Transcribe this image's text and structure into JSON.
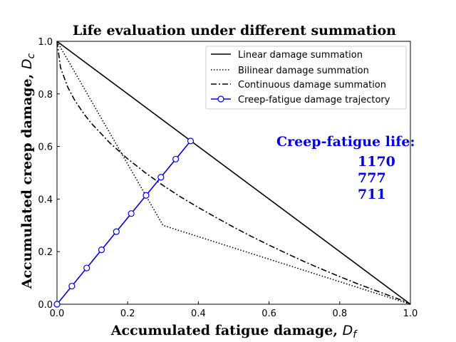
{
  "chart_data": {
    "type": "line",
    "title": "Life evaluation under different summation",
    "xlabel": "Accumulated fatigue damage, ",
    "xlabel_symbol": "D",
    "xlabel_sub": "f",
    "ylabel": "Accumulated creep damage, ",
    "ylabel_symbol": "D",
    "ylabel_sub": "c",
    "xlim": [
      0,
      1
    ],
    "ylim": [
      0,
      1
    ],
    "xticks": [
      "0.0",
      "0.2",
      "0.4",
      "0.6",
      "0.8",
      "1.0"
    ],
    "yticks": [
      "0.0",
      "0.2",
      "0.4",
      "0.6",
      "0.8",
      "1.0"
    ],
    "tick_values": [
      0,
      0.2,
      0.4,
      0.6,
      0.8,
      1.0
    ],
    "grid": false,
    "legend_position": "top-right",
    "series": [
      {
        "name": "Linear damage summation",
        "style": "solid",
        "color": "#000000",
        "x": [
          0,
          1
        ],
        "y": [
          1,
          0
        ]
      },
      {
        "name": "Bilinear damage summation",
        "style": "dotted",
        "color": "#000000",
        "x": [
          0,
          0.3,
          1
        ],
        "y": [
          1,
          0.3,
          0
        ]
      },
      {
        "name": "Continuous damage summation",
        "style": "dashdot",
        "color": "#000000",
        "x": [
          0,
          0.01,
          0.03,
          0.05,
          0.08,
          0.1,
          0.15,
          0.2,
          0.25,
          0.3,
          0.35,
          0.4,
          0.45,
          0.5,
          0.55,
          0.6,
          0.65,
          0.7,
          0.75,
          0.8,
          0.85,
          0.9,
          0.95,
          0.98,
          1.0
        ],
        "y": [
          1.0,
          0.9,
          0.827,
          0.776,
          0.717,
          0.684,
          0.613,
          0.553,
          0.5,
          0.452,
          0.408,
          0.368,
          0.33,
          0.293,
          0.258,
          0.225,
          0.193,
          0.162,
          0.133,
          0.105,
          0.078,
          0.053,
          0.028,
          0.013,
          0.0
        ]
      },
      {
        "name": "Creep-fatigue damage trajectory",
        "style": "solid-marker",
        "color": "#0000ee",
        "x": [
          0,
          0.042,
          0.084,
          0.126,
          0.168,
          0.21,
          0.252,
          0.294,
          0.336,
          0.378
        ],
        "y": [
          0,
          0.069,
          0.138,
          0.207,
          0.276,
          0.345,
          0.414,
          0.483,
          0.552,
          0.621
        ]
      }
    ],
    "annotation": {
      "title": "Creep-fatigue life:",
      "values": [
        "1170",
        "777",
        "711"
      ],
      "color": "#0000ee"
    }
  }
}
